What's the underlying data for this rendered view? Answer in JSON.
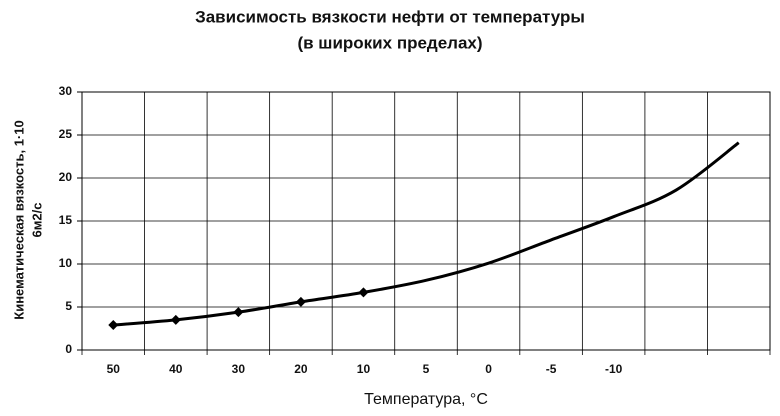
{
  "chart_data": {
    "type": "line",
    "title": [
      "Зависимость вязкости нефти от температуры",
      "(в широких пределах)"
    ],
    "x_label": "Температура, °C",
    "y_label": [
      "Кинематическая вязкость, 1·10",
      "6м2/с"
    ],
    "categories": [
      "50",
      "40",
      "30",
      "20",
      "10",
      "5",
      "0",
      "-5",
      "-10",
      null,
      null
    ],
    "values": [
      2.9,
      3.5,
      4.4,
      5.6,
      6.7,
      8.1,
      10.1,
      12.8,
      15.5,
      18.6,
      24.1
    ],
    "markers": [
      true,
      true,
      true,
      true,
      true,
      false,
      false,
      false,
      false,
      false,
      false
    ],
    "color": "#000000",
    "ylim": [
      0,
      30
    ],
    "yticks": [
      0,
      5,
      10,
      15,
      20,
      25,
      30
    ],
    "grid": true
  }
}
